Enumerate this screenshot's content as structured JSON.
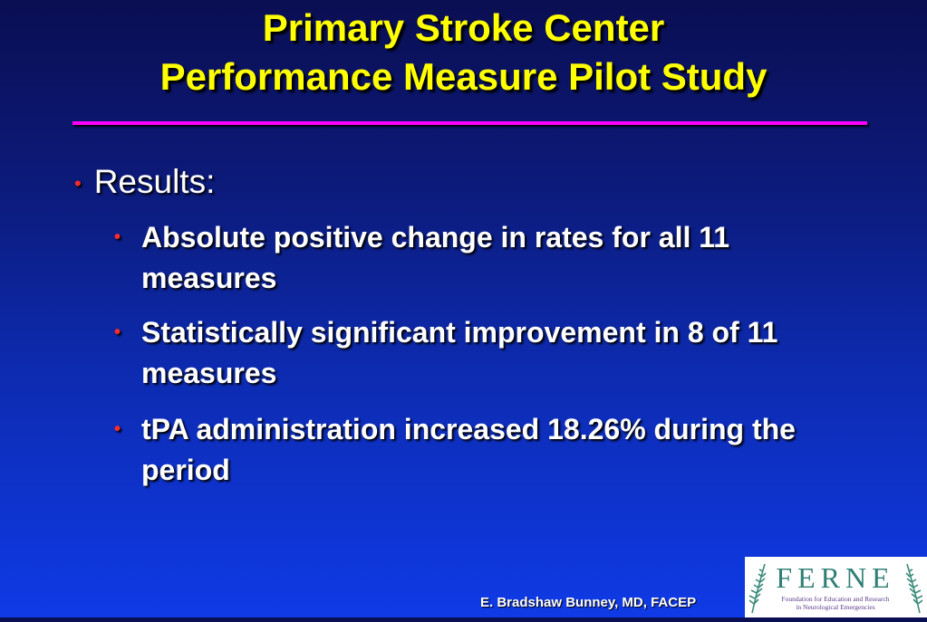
{
  "slide": {
    "title_line1": "Primary Stroke Center",
    "title_line2": "Performance Measure Pilot Study",
    "level1": "Results:",
    "level2": [
      "Absolute positive change in rates for all 11 measures",
      "Statistically significant improvement in 8 of 11 measures",
      "tPA administration increased 18.26% during the period"
    ],
    "footer": "E. Bradshaw Bunney, MD, FACEP"
  },
  "logo": {
    "wordmark": "FERNE",
    "tagline_line1": "Foundation for Education and Research",
    "tagline_line2": "in Neurological Emergencies"
  },
  "colors": {
    "title": "#ffff00",
    "rule": "#ff00ff",
    "bullet": "#ff2a2a",
    "text": "#ffffff"
  }
}
